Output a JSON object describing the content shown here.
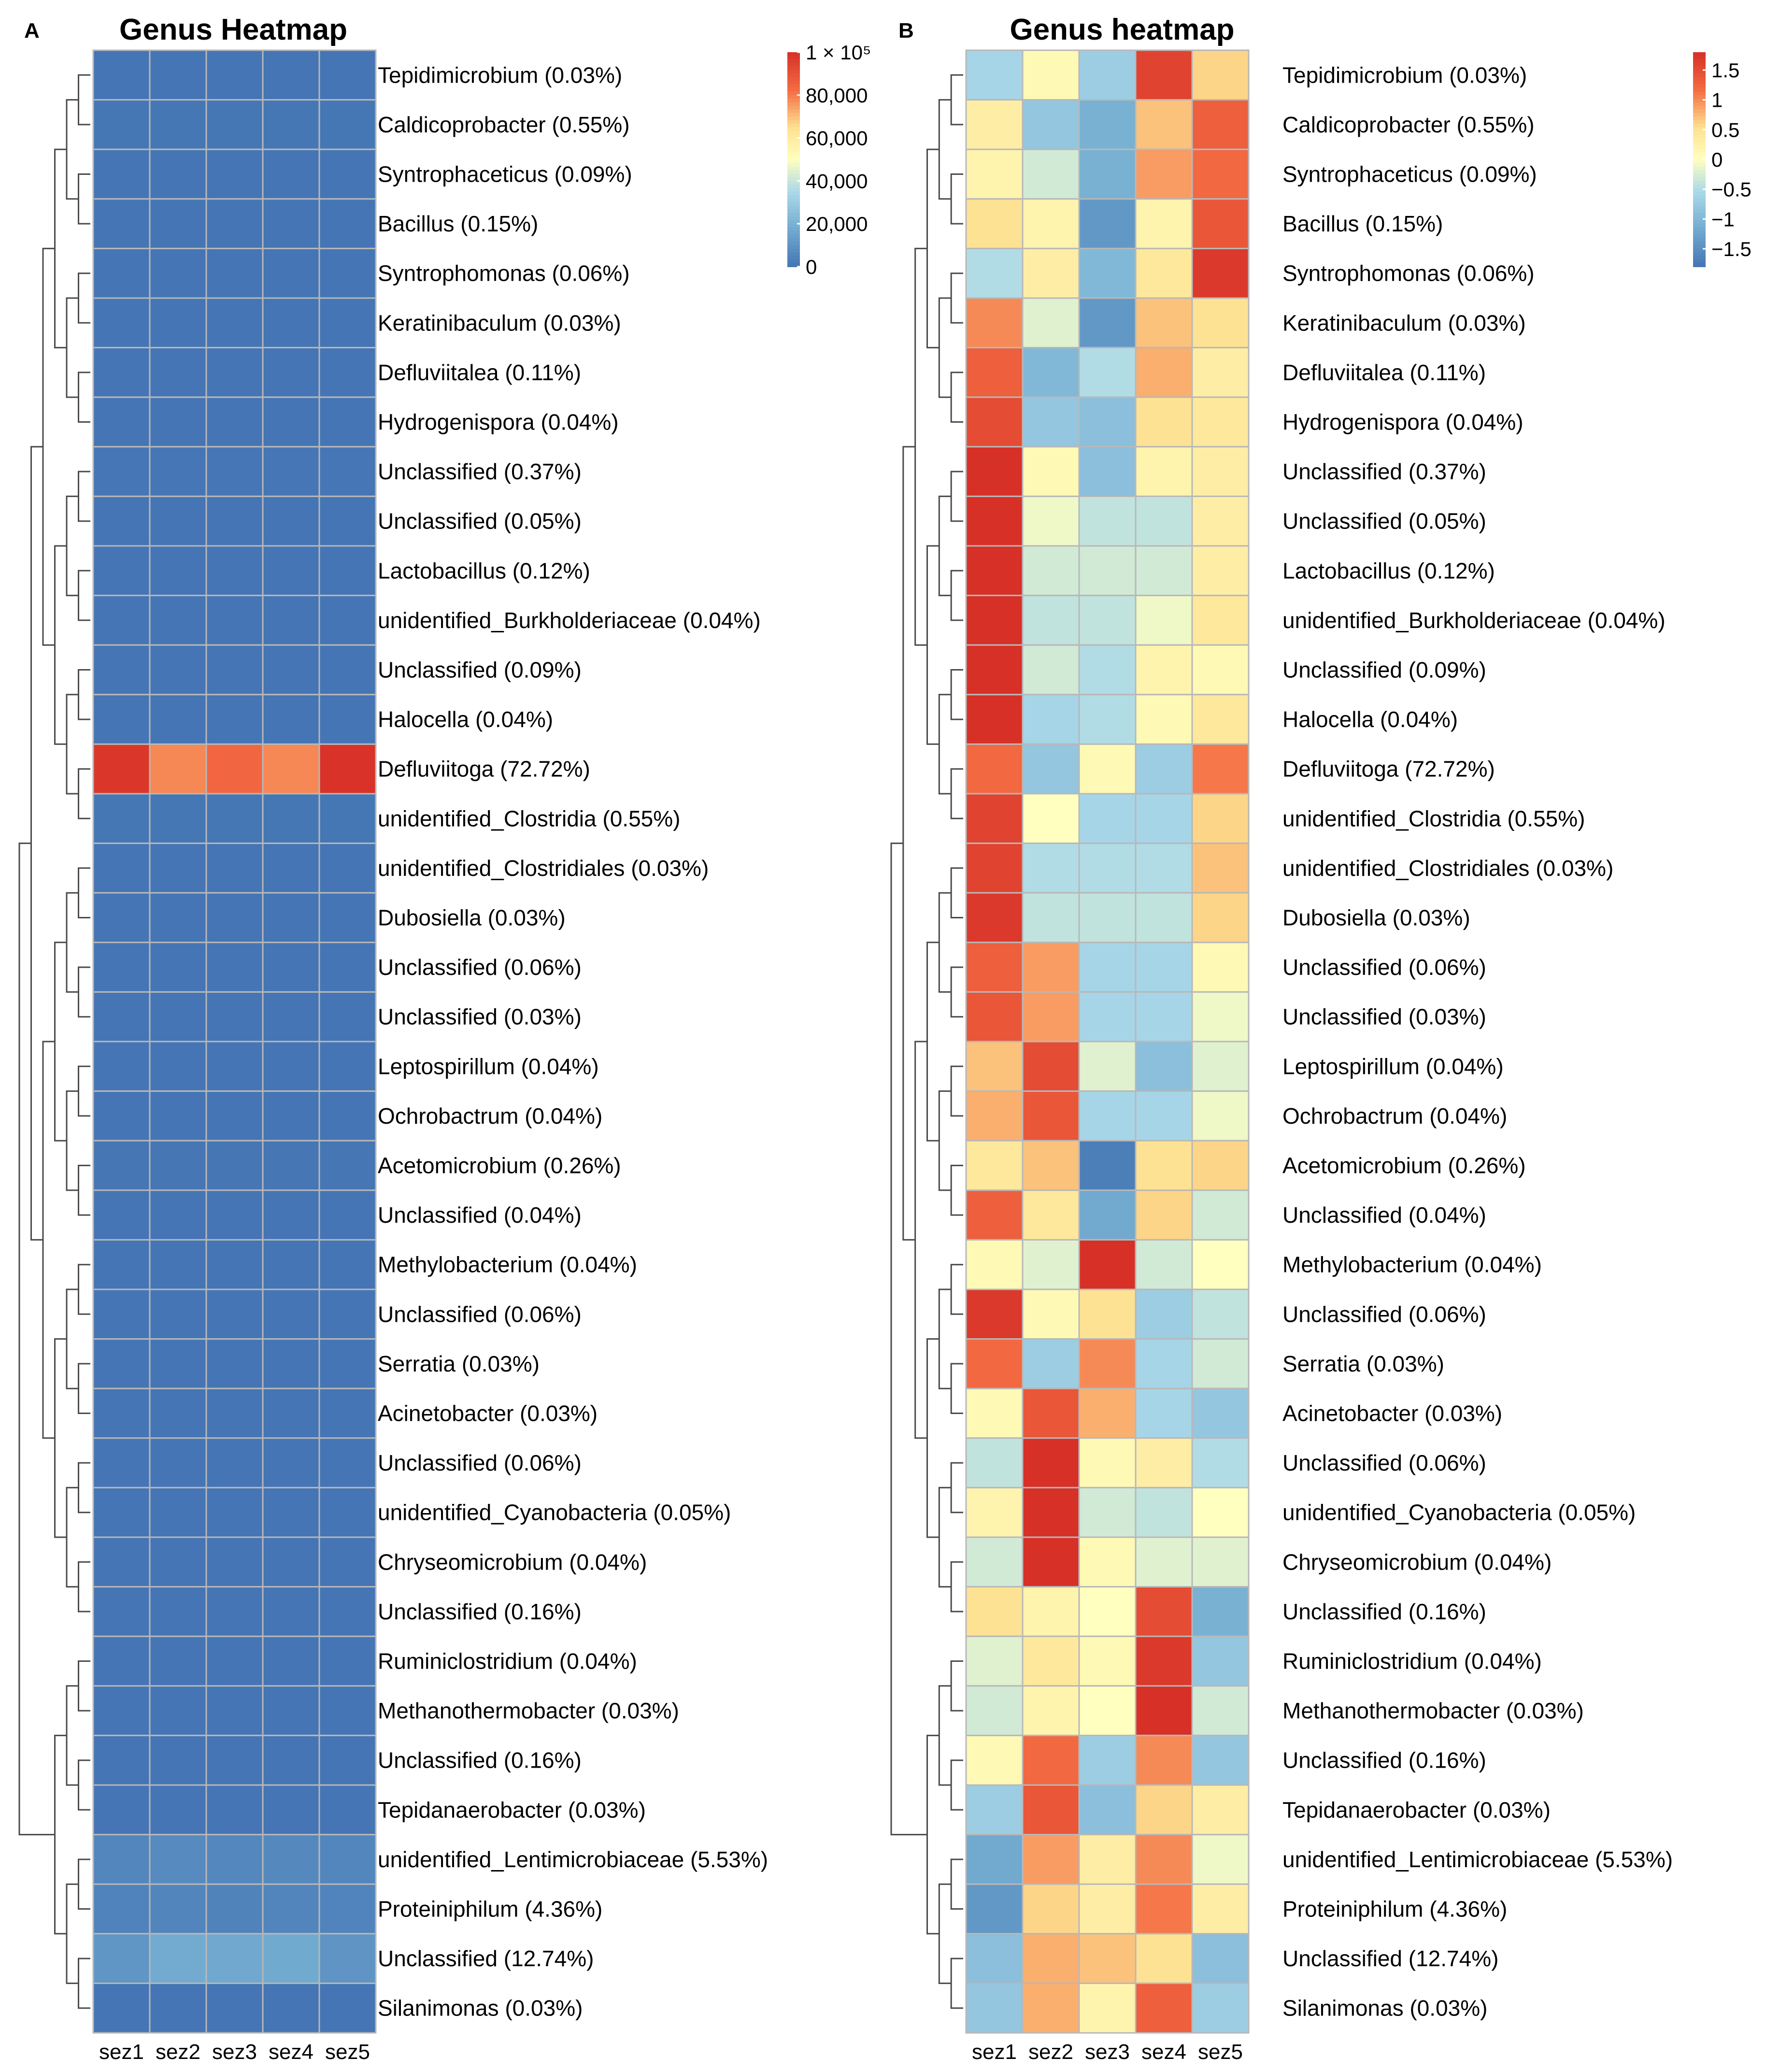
{
  "chart_data": [
    {
      "panel": "A",
      "type": "heatmap",
      "title": "Genus Heatmap",
      "columns": [
        "sez1",
        "sez2",
        "sez3",
        "sez4",
        "sez5"
      ],
      "rows": [
        "Tepidimicrobium (0.03%)",
        "Caldicoprobacter (0.55%)",
        "Syntrophaceticus (0.09%)",
        "Bacillus (0.15%)",
        "Syntrophomonas (0.06%)",
        "Keratinibaculum (0.03%)",
        "Defluviitalea (0.11%)",
        "Hydrogenispora (0.04%)",
        "Unclassified (0.37%)",
        "Unclassified (0.05%)",
        "Lactobacillus (0.12%)",
        "unidentified_Burkholderiaceae (0.04%)",
        "Unclassified (0.09%)",
        "Halocella (0.04%)",
        "Defluviitoga (72.72%)",
        "unidentified_Clostridia (0.55%)",
        "unidentified_Clostridiales (0.03%)",
        "Dubosiella (0.03%)",
        "Unclassified (0.06%)",
        "Unclassified (0.03%)",
        "Leptospirillum (0.04%)",
        "Ochrobactrum (0.04%)",
        "Acetomicrobium (0.26%)",
        "Unclassified (0.04%)",
        "Methylobacterium (0.04%)",
        "Unclassified (0.06%)",
        "Serratia (0.03%)",
        "Acinetobacter (0.03%)",
        "Unclassified (0.06%)",
        "unidentified_Cyanobacteria (0.05%)",
        "Chryseomicrobium (0.04%)",
        "Unclassified (0.16%)",
        "Ruminiclostridium (0.04%)",
        "Methanothermobacter (0.03%)",
        "Unclassified (0.16%)",
        "Tepidanaerobacter (0.03%)",
        "unidentified_Lentimicrobiaceae (5.53%)",
        "Proteiniphilum (4.36%)",
        "Unclassified (12.74%)",
        "Silanimonas (0.03%)"
      ],
      "values": [
        [
          30,
          30,
          30,
          30,
          30
        ],
        [
          550,
          550,
          550,
          550,
          550
        ],
        [
          90,
          90,
          90,
          90,
          90
        ],
        [
          150,
          150,
          150,
          150,
          150
        ],
        [
          60,
          60,
          60,
          60,
          60
        ],
        [
          30,
          30,
          30,
          30,
          30
        ],
        [
          110,
          110,
          110,
          110,
          110
        ],
        [
          40,
          40,
          40,
          40,
          40
        ],
        [
          370,
          370,
          370,
          370,
          370
        ],
        [
          50,
          50,
          50,
          50,
          50
        ],
        [
          120,
          120,
          120,
          120,
          120
        ],
        [
          40,
          40,
          40,
          40,
          40
        ],
        [
          90,
          90,
          90,
          90,
          90
        ],
        [
          40,
          40,
          40,
          40,
          40
        ],
        [
          98000,
          78000,
          84000,
          78000,
          99000
        ],
        [
          550,
          550,
          550,
          550,
          550
        ],
        [
          30,
          30,
          30,
          30,
          30
        ],
        [
          30,
          30,
          30,
          30,
          30
        ],
        [
          60,
          60,
          60,
          60,
          60
        ],
        [
          30,
          30,
          30,
          30,
          30
        ],
        [
          40,
          40,
          40,
          40,
          40
        ],
        [
          40,
          40,
          40,
          40,
          40
        ],
        [
          260,
          260,
          260,
          260,
          260
        ],
        [
          40,
          40,
          40,
          40,
          40
        ],
        [
          40,
          40,
          40,
          40,
          40
        ],
        [
          60,
          60,
          60,
          60,
          60
        ],
        [
          30,
          30,
          30,
          30,
          30
        ],
        [
          30,
          30,
          30,
          30,
          30
        ],
        [
          60,
          60,
          60,
          60,
          60
        ],
        [
          50,
          50,
          50,
          50,
          50
        ],
        [
          40,
          40,
          40,
          40,
          40
        ],
        [
          160,
          160,
          160,
          160,
          160
        ],
        [
          40,
          40,
          40,
          40,
          40
        ],
        [
          30,
          30,
          30,
          30,
          30
        ],
        [
          160,
          160,
          160,
          160,
          160
        ],
        [
          30,
          30,
          30,
          30,
          30
        ],
        [
          5500,
          6800,
          5800,
          6300,
          5400
        ],
        [
          4400,
          5300,
          4600,
          5000,
          4700
        ],
        [
          10500,
          17500,
          16500,
          17000,
          10000
        ],
        [
          30,
          30,
          30,
          30,
          30
        ]
      ],
      "colorbar": {
        "min": 0,
        "max": 100000,
        "ticks": [
          0,
          20000,
          40000,
          60000,
          80000,
          100000
        ],
        "tick_labels": [
          "0",
          "20,000",
          "40,000",
          "60,000",
          "80,000",
          "1 × 10⁵"
        ]
      },
      "row_dendrogram": true
    },
    {
      "panel": "B",
      "type": "heatmap",
      "title": "Genus heatmap",
      "columns": [
        "sez1",
        "sez2",
        "sez3",
        "sez4",
        "sez5"
      ],
      "rows": [
        "Tepidimicrobium (0.03%)",
        "Caldicoprobacter (0.55%)",
        "Syntrophaceticus (0.09%)",
        "Bacillus (0.15%)",
        "Syntrophomonas (0.06%)",
        "Keratinibaculum (0.03%)",
        "Defluviitalea (0.11%)",
        "Hydrogenispora (0.04%)",
        "Unclassified (0.37%)",
        "Unclassified (0.05%)",
        "Lactobacillus (0.12%)",
        "unidentified_Burkholderiaceae (0.04%)",
        "Unclassified (0.09%)",
        "Halocella (0.04%)",
        "Defluviitoga (72.72%)",
        "unidentified_Clostridia (0.55%)",
        "unidentified_Clostridiales (0.03%)",
        "Dubosiella (0.03%)",
        "Unclassified (0.06%)",
        "Unclassified (0.03%)",
        "Leptospirillum (0.04%)",
        "Ochrobactrum (0.04%)",
        "Acetomicrobium (0.26%)",
        "Unclassified (0.04%)",
        "Methylobacterium (0.04%)",
        "Unclassified (0.06%)",
        "Serratia (0.03%)",
        "Acinetobacter (0.03%)",
        "Unclassified (0.06%)",
        "unidentified_Cyanobacteria (0.05%)",
        "Chryseomicrobium (0.04%)",
        "Unclassified (0.16%)",
        "Ruminiclostridium (0.04%)",
        "Methanothermobacter (0.03%)",
        "Unclassified (0.16%)",
        "Tepidanaerobacter (0.03%)",
        "unidentified_Lentimicrobiaceae (5.53%)",
        "Proteiniphilum (4.36%)",
        "Unclassified (12.74%)",
        "Silanimonas (0.03%)"
      ],
      "values": [
        [
          -0.6,
          0.1,
          -0.7,
          1.6,
          0.6
        ],
        [
          0.3,
          -0.8,
          -1.1,
          0.7,
          1.3
        ],
        [
          0.2,
          -0.3,
          -1.1,
          0.9,
          1.2
        ],
        [
          0.5,
          0.2,
          -1.4,
          0.2,
          1.4
        ],
        [
          -0.5,
          0.3,
          -1.0,
          0.4,
          1.7
        ],
        [
          1.0,
          -0.2,
          -1.4,
          0.7,
          0.5
        ],
        [
          1.3,
          -1.0,
          -0.5,
          0.8,
          0.3
        ],
        [
          1.5,
          -0.8,
          -0.9,
          0.5,
          0.4
        ],
        [
          1.8,
          0.1,
          -0.9,
          0.2,
          0.3
        ],
        [
          1.9,
          -0.1,
          -0.4,
          -0.4,
          0.3
        ],
        [
          1.9,
          -0.3,
          -0.3,
          -0.3,
          0.3
        ],
        [
          1.9,
          -0.4,
          -0.4,
          -0.1,
          0.4
        ],
        [
          1.9,
          -0.3,
          -0.5,
          0.2,
          0.1
        ],
        [
          1.9,
          -0.6,
          -0.5,
          0.1,
          0.4
        ],
        [
          1.2,
          -0.8,
          0.1,
          -0.7,
          1.1
        ],
        [
          1.6,
          0.0,
          -0.6,
          -0.6,
          0.6
        ],
        [
          1.6,
          -0.5,
          -0.5,
          -0.5,
          0.7
        ],
        [
          1.7,
          -0.4,
          -0.4,
          -0.4,
          0.6
        ],
        [
          1.3,
          0.9,
          -0.6,
          -0.6,
          0.1
        ],
        [
          1.4,
          0.9,
          -0.6,
          -0.6,
          -0.1
        ],
        [
          0.7,
          1.5,
          -0.2,
          -0.9,
          -0.2
        ],
        [
          0.8,
          1.4,
          -0.6,
          -0.6,
          -0.1
        ],
        [
          0.4,
          0.7,
          -1.7,
          0.5,
          0.6
        ],
        [
          1.3,
          0.4,
          -1.2,
          0.6,
          -0.3
        ],
        [
          0.1,
          -0.2,
          2.0,
          -0.3,
          0.0
        ],
        [
          1.7,
          0.1,
          0.5,
          -0.7,
          -0.4
        ],
        [
          1.2,
          -0.7,
          1.0,
          -0.6,
          -0.3
        ],
        [
          0.1,
          1.4,
          0.8,
          -0.6,
          -0.8
        ],
        [
          -0.4,
          1.8,
          0.1,
          0.3,
          -0.5
        ],
        [
          0.2,
          2.0,
          -0.3,
          -0.4,
          0.0
        ],
        [
          -0.3,
          2.0,
          0.1,
          -0.2,
          -0.2
        ],
        [
          0.5,
          0.2,
          0.0,
          1.5,
          -1.1
        ],
        [
          -0.2,
          0.4,
          0.1,
          1.7,
          -0.8
        ],
        [
          -0.3,
          0.2,
          0.0,
          2.0,
          -0.3
        ],
        [
          0.1,
          1.2,
          -0.7,
          1.0,
          -0.8
        ],
        [
          -0.7,
          1.4,
          -0.9,
          0.6,
          0.3
        ],
        [
          -1.2,
          0.9,
          0.3,
          1.0,
          -0.1
        ],
        [
          -1.4,
          0.6,
          0.3,
          1.1,
          0.3
        ],
        [
          -0.9,
          0.8,
          0.7,
          0.5,
          -0.9
        ],
        [
          -0.8,
          0.8,
          0.2,
          1.3,
          -0.7
        ]
      ],
      "colorbar": {
        "min": -1.8,
        "max": 1.8,
        "ticks": [
          -1.5,
          -1,
          -0.5,
          0,
          0.5,
          1,
          1.5
        ],
        "tick_labels": [
          "−1.5",
          "−1",
          "−0.5",
          "0",
          "0.5",
          "1",
          "1.5"
        ]
      },
      "row_dendrogram": true
    }
  ],
  "panels": {
    "a_label": "A",
    "b_label": "B"
  }
}
